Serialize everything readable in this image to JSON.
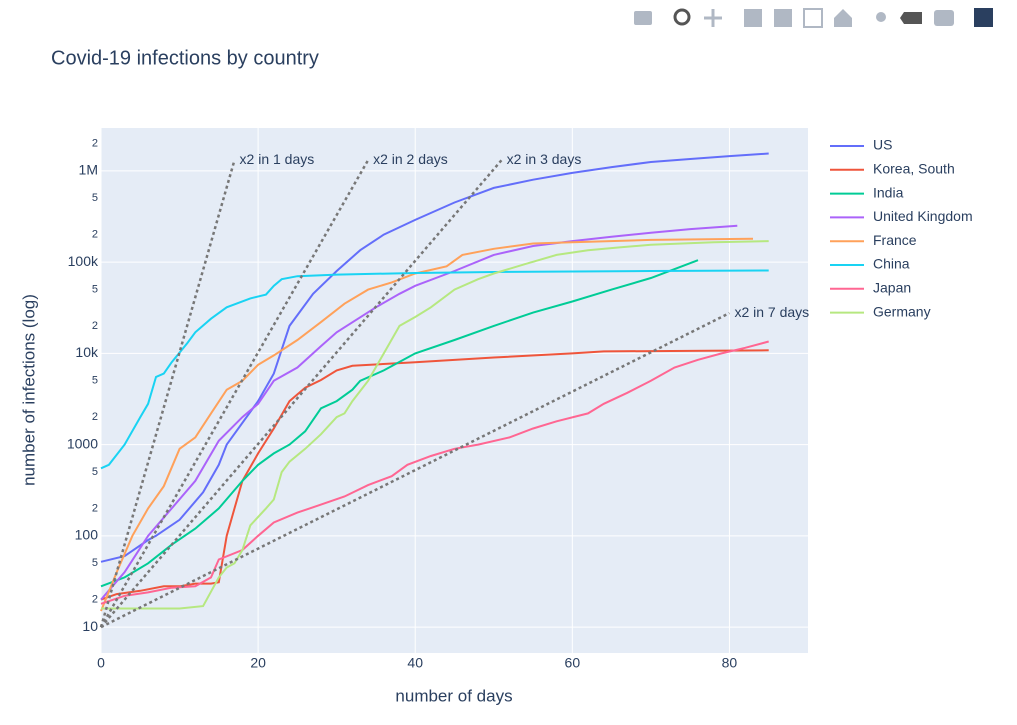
{
  "chart_data": {
    "type": "line",
    "title": "Covid-19 infections by country",
    "x_label": "number of days",
    "y_label": "number of infections (log)",
    "log_y": true,
    "grid": true,
    "legend_position": "right",
    "xlim": [
      0,
      90
    ],
    "xticks": [
      0,
      20,
      40,
      60,
      80
    ],
    "ylim": [
      5.2,
      2950000
    ],
    "yticks": [
      10,
      {
        "value": 20,
        "label": "2"
      },
      {
        "value": 50,
        "label": "5"
      },
      100,
      {
        "value": 200,
        "label": "2"
      },
      {
        "value": 500,
        "label": "5"
      },
      1000,
      {
        "value": 2000,
        "label": "2"
      },
      {
        "value": 5000,
        "label": "5"
      },
      {
        "value": 10000,
        "label": "10k"
      },
      {
        "value": 20000,
        "label": "2"
      },
      {
        "value": 50000,
        "label": "5"
      },
      {
        "value": 100000,
        "label": "100k"
      },
      {
        "value": 200000,
        "label": "2"
      },
      {
        "value": 500000,
        "label": "5"
      },
      {
        "value": 1000000,
        "label": "1M"
      },
      {
        "value": 2000000,
        "label": "2"
      }
    ],
    "series": [
      {
        "name": "US",
        "color": "#636efa",
        "x": [
          0,
          3,
          6,
          7,
          10,
          13,
          15,
          16,
          20,
          22,
          24,
          27,
          30,
          33,
          36,
          40,
          45,
          50,
          55,
          60,
          65,
          70,
          75,
          80,
          85
        ],
        "values": [
          52,
          60,
          90,
          100,
          150,
          300,
          600,
          1000,
          3000,
          6000,
          20000,
          45000,
          80000,
          135000,
          200000,
          290000,
          450000,
          650000,
          800000,
          950000,
          1100000,
          1250000,
          1350000,
          1450000,
          1550000
        ]
      },
      {
        "name": "Korea, South",
        "color": "#EF553B",
        "x": [
          0,
          2,
          5,
          8,
          10,
          12,
          14,
          15,
          16,
          17,
          18,
          20,
          22,
          24,
          26,
          28,
          30,
          32,
          40,
          50,
          60,
          64,
          85
        ],
        "values": [
          20,
          23,
          25,
          28,
          28,
          30,
          30,
          31,
          100,
          200,
          400,
          800,
          1500,
          3000,
          4200,
          5100,
          6500,
          7300,
          8000,
          9000,
          10000,
          10500,
          10800
        ]
      },
      {
        "name": "India",
        "color": "#00cc96",
        "x": [
          0,
          3,
          6,
          9,
          12,
          15,
          18,
          20,
          22,
          24,
          26,
          28,
          30,
          32,
          33,
          36,
          40,
          45,
          50,
          55,
          60,
          65,
          70,
          76
        ],
        "values": [
          28,
          35,
          50,
          80,
          120,
          200,
          400,
          600,
          800,
          1000,
          1400,
          2500,
          3000,
          4000,
          5000,
          6500,
          10000,
          14000,
          20000,
          28000,
          37000,
          50000,
          67000,
          105000
        ]
      },
      {
        "name": "United Kingdom",
        "color": "#ab63fa",
        "x": [
          0,
          3,
          6,
          9,
          12,
          15,
          18,
          20,
          22,
          25,
          28,
          30,
          35,
          38,
          40,
          45,
          50,
          55,
          60,
          65,
          70,
          75,
          81
        ],
        "values": [
          20,
          40,
          100,
          200,
          400,
          1100,
          2000,
          2800,
          5000,
          7000,
          12000,
          17000,
          32000,
          45000,
          55000,
          80000,
          120000,
          150000,
          170000,
          190000,
          210000,
          230000,
          250000
        ]
      },
      {
        "name": "France",
        "color": "#FFA15A",
        "x": [
          0,
          2,
          4,
          6,
          8,
          10,
          12,
          14,
          16,
          18,
          20,
          22,
          25,
          28,
          31,
          34,
          37,
          40,
          44,
          46,
          50,
          55,
          60,
          70,
          83
        ],
        "values": [
          15,
          40,
          100,
          200,
          350,
          900,
          1200,
          2200,
          4000,
          5000,
          7500,
          9500,
          14000,
          22000,
          35000,
          50000,
          60000,
          75000,
          90000,
          120000,
          140000,
          160000,
          165000,
          175000,
          180000
        ]
      },
      {
        "name": "China",
        "color": "#19d3f3",
        "x": [
          0,
          1,
          3,
          5,
          6,
          7,
          8,
          9,
          11,
          12,
          14,
          16,
          19,
          21,
          22,
          23,
          25,
          30,
          40,
          50,
          60,
          70,
          85
        ],
        "values": [
          550,
          600,
          1000,
          2000,
          2800,
          5500,
          6000,
          8000,
          13000,
          17000,
          24000,
          32000,
          40000,
          44000,
          55000,
          65000,
          70000,
          73000,
          76000,
          78000,
          79000,
          80000,
          81000
        ]
      },
      {
        "name": "Japan",
        "color": "#FF6692",
        "x": [
          0,
          3,
          6,
          9,
          12,
          14,
          15,
          18,
          20,
          22,
          25,
          28,
          31,
          34,
          37,
          39,
          42,
          45,
          48,
          52,
          55,
          58,
          62,
          64,
          67,
          70,
          73,
          76,
          79,
          82,
          85
        ],
        "values": [
          18,
          22,
          24,
          27,
          28,
          35,
          55,
          70,
          100,
          140,
          180,
          220,
          270,
          360,
          450,
          600,
          750,
          900,
          1000,
          1200,
          1500,
          1800,
          2200,
          2800,
          3700,
          5000,
          7000,
          8500,
          10000,
          11500,
          13500
        ]
      },
      {
        "name": "Germany",
        "color": "#B6E880",
        "x": [
          0,
          3,
          6,
          10,
          13,
          15,
          16,
          17,
          18,
          19,
          21,
          22,
          23,
          24,
          26,
          28,
          30,
          31,
          32,
          34,
          36,
          38,
          40,
          42,
          45,
          48,
          50,
          54,
          58,
          62,
          66,
          70,
          78,
          85
        ],
        "values": [
          16,
          16,
          16,
          16,
          17,
          35,
          45,
          50,
          70,
          130,
          200,
          250,
          500,
          650,
          900,
          1300,
          2000,
          2200,
          3000,
          5000,
          10000,
          20000,
          25000,
          32000,
          50000,
          65000,
          75000,
          95000,
          120000,
          135000,
          145000,
          155000,
          165000,
          170000
        ]
      },
      {
        "name": "x2 in 1 days",
        "color": "#777777",
        "dash": true,
        "show_in_legend": false,
        "x": [
          0,
          17
        ],
        "values": [
          10,
          1310720
        ]
      },
      {
        "name": "x2 in 2 days",
        "color": "#777777",
        "dash": true,
        "show_in_legend": false,
        "x": [
          0,
          34
        ],
        "values": [
          10,
          1310720
        ]
      },
      {
        "name": "x2 in 3 days",
        "color": "#777777",
        "dash": true,
        "show_in_legend": false,
        "x": [
          0,
          51
        ],
        "values": [
          10,
          1310720
        ]
      },
      {
        "name": "x2 in 7 days",
        "color": "#777777",
        "dash": true,
        "show_in_legend": false,
        "x": [
          0,
          80
        ],
        "values": [
          10,
          27600
        ]
      }
    ]
  }
}
